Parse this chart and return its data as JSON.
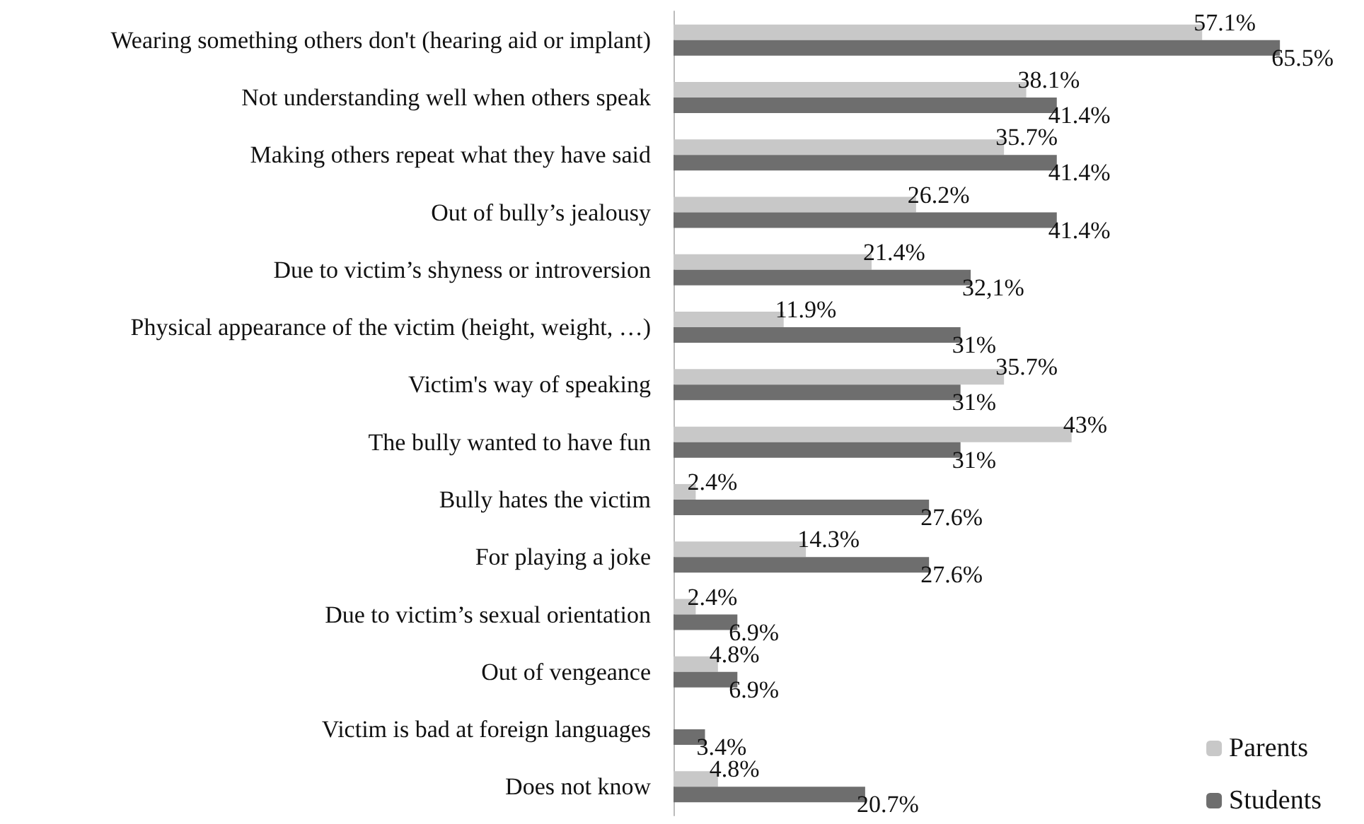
{
  "chart_data": {
    "type": "bar",
    "orientation": "horizontal",
    "categories": [
      "Wearing something others don't (hearing aid or implant)",
      "Not understanding well when others speak",
      "Making others repeat what they have said",
      "Out of bully’s jealousy",
      "Due to victim’s shyness or introversion",
      "Physical appearance of the victim (height, weight, …)",
      "Victim's way of speaking",
      "The bully wanted to have fun",
      "Bully hates the victim",
      "For playing a joke",
      "Due to victim’s sexual orientation",
      "Out of vengeance",
      "Victim is bad at foreign languages",
      "Does not know"
    ],
    "series": [
      {
        "name": "Parents",
        "color": "#c8c8c8",
        "values": [
          57.1,
          38.1,
          35.7,
          26.2,
          21.4,
          11.9,
          35.7,
          43,
          2.4,
          14.3,
          2.4,
          4.8,
          null,
          4.8
        ],
        "value_labels": [
          "57.1%",
          "38.1%",
          "35.7%",
          "26.2%",
          "21.4%",
          "11.9%",
          "35.7%",
          "43%",
          "2.4%",
          "14.3%",
          "2.4%",
          "4.8%",
          null,
          "4.8%"
        ]
      },
      {
        "name": "Students",
        "color": "#6e6e6e",
        "values": [
          65.5,
          41.4,
          41.4,
          41.4,
          32.1,
          31,
          31,
          31,
          27.6,
          27.6,
          6.9,
          6.9,
          3.4,
          20.7
        ],
        "value_labels": [
          "65.5%",
          "41.4%",
          "41.4%",
          "41.4%",
          "32,1%",
          "31%",
          "31%",
          "31%",
          "27.6%",
          "27.6%",
          "6.9%",
          "6.9%",
          "3.4%",
          "20.7%"
        ]
      }
    ],
    "legend": "bottom right",
    "tick_labels": "y"
  }
}
